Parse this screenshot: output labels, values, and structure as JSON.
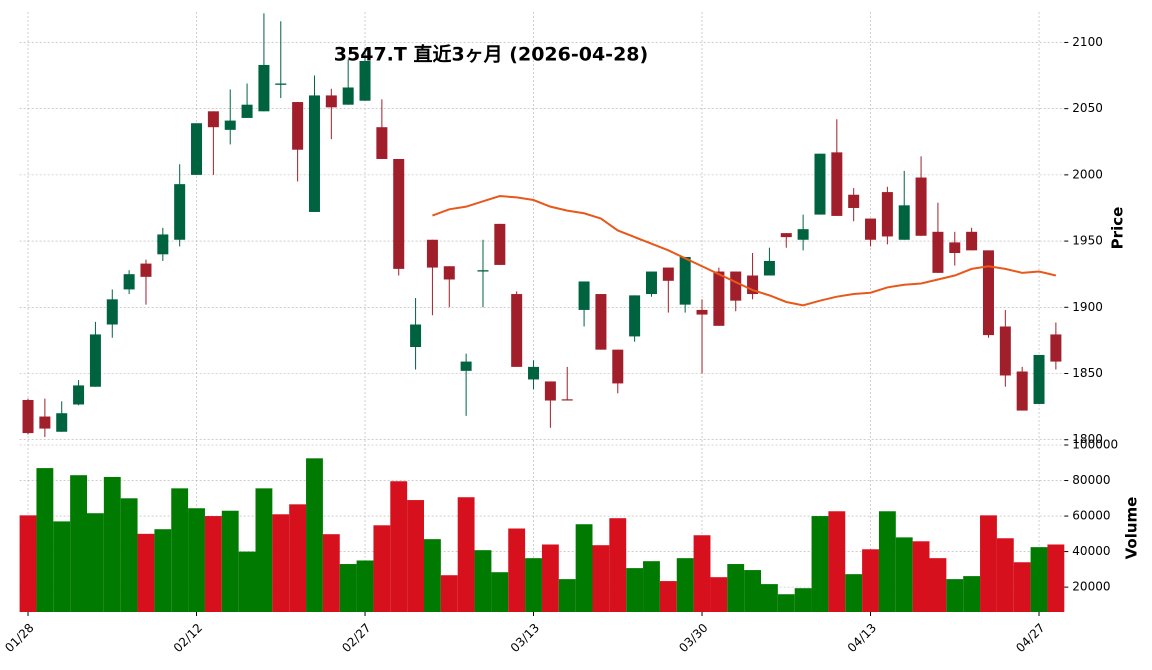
{
  "chart_data": [
    {
      "type": "candlestick",
      "title": "3547.T  直近3ヶ月  (2026-04-28)",
      "ylabel": "Price",
      "ylim": [
        1796,
        2123
      ],
      "yticks": [
        1800,
        1850,
        1900,
        1950,
        2000,
        2050,
        2100
      ],
      "grid": true,
      "up_color": "#006340",
      "down_color": "#a01f2a",
      "open": [
        1830,
        1817.5,
        1806,
        1826.6,
        1840,
        1887,
        1913.5,
        1933,
        1940,
        1951,
        2000,
        2048,
        2034,
        2043,
        2048,
        2068,
        2055,
        1972,
        2060,
        2053,
        2056,
        2036,
        2012,
        1870,
        1951,
        1931,
        1852,
        1927,
        1963,
        1910,
        1845.5,
        1844,
        1830.5,
        1898,
        1910,
        1868,
        1878,
        1910,
        1930,
        1902,
        1898,
        1927,
        1927,
        1924,
        1924,
        1956,
        1951,
        1970,
        2017,
        1985,
        1967,
        1987,
        1951,
        1998,
        1957,
        1949,
        1957,
        1943,
        1885.5,
        1851.5,
        1827,
        1879.5
      ],
      "high": [
        1831,
        1831,
        1829,
        1845,
        1889,
        1913.5,
        1928,
        1936,
        1960,
        2008,
        2039,
        2048,
        2064.5,
        2069,
        2122,
        2116,
        2055,
        2075,
        2065,
        2087,
        2096,
        2057,
        2012,
        1907,
        1951,
        1931,
        1865,
        1951,
        1963,
        1912,
        1860,
        1844,
        1855,
        1919.5,
        1910,
        1868,
        1909,
        1927,
        1930,
        1938,
        1906,
        1930,
        1927,
        1941,
        1945,
        1956,
        1970,
        2016,
        2042,
        1990,
        1967,
        1991,
        2003,
        2014,
        1979,
        1957,
        1960,
        1943,
        1898,
        1855,
        1864,
        1888.5
      ],
      "low": [
        1804,
        1802,
        1806,
        1826,
        1840,
        1877,
        1910,
        1902,
        1935,
        1946,
        2000,
        2000,
        2023,
        2043,
        2048,
        2058,
        1995,
        1972,
        2027,
        2053,
        2056,
        2012,
        1924,
        1853,
        1894,
        1900,
        1818,
        1900,
        1932,
        1855,
        1838,
        1809,
        1830,
        1885.5,
        1868,
        1835,
        1874,
        1908,
        1896,
        1896,
        1850,
        1886,
        1897,
        1906,
        1924,
        1945,
        1943,
        1970,
        1969,
        1965,
        1946,
        1947.5,
        1951,
        1954,
        1926,
        1931.5,
        1943,
        1877,
        1840,
        1822,
        1827,
        1853
      ],
      "close": [
        1805,
        1808.4,
        1820,
        1841,
        1879.5,
        1906,
        1925,
        1923,
        1955,
        1993,
        2039,
        2036,
        2041,
        2053,
        2083,
        2069,
        2019,
        2060,
        2051,
        2066,
        2086,
        2012,
        1929,
        1887,
        1930,
        1921,
        1859,
        1928,
        1932,
        1855,
        1855,
        1829.6,
        1830,
        1919.5,
        1868,
        1842.5,
        1909,
        1927,
        1920,
        1938,
        1894.5,
        1886,
        1905,
        1910,
        1935,
        1953,
        1959,
        2016,
        1969,
        1975,
        1951,
        1953.5,
        1977,
        1954,
        1926,
        1941,
        1943,
        1879,
        1848.5,
        1822,
        1864,
        1859
      ],
      "ma": {
        "color": "#e8581a",
        "values": [
          null,
          null,
          null,
          null,
          null,
          null,
          null,
          null,
          null,
          null,
          null,
          null,
          null,
          null,
          null,
          null,
          null,
          null,
          null,
          null,
          null,
          null,
          null,
          null,
          1969.3,
          1974,
          1976,
          1980,
          1984,
          1983,
          1981,
          1976,
          1973,
          1971,
          1967,
          1958,
          1953,
          1948,
          1943,
          1937,
          1931,
          1925,
          1919,
          1913,
          1909,
          1904,
          1901.5,
          1905,
          1908,
          1910,
          1911,
          1915,
          1917,
          1918,
          1921,
          1924,
          1929,
          1931,
          1929,
          1926,
          1927,
          1924
        ]
      }
    },
    {
      "type": "bar",
      "ylabel": "Volume",
      "ylim": [
        6000,
        100000
      ],
      "yticks": [
        20000,
        40000,
        60000,
        80000,
        100000
      ],
      "grid": true,
      "up_color": "#007a00",
      "down_color": "#d6101c",
      "categories": [
        "01/28",
        null,
        null,
        null,
        null,
        null,
        null,
        null,
        null,
        null,
        "02/12",
        null,
        null,
        null,
        null,
        null,
        null,
        null,
        null,
        null,
        "02/27",
        null,
        null,
        null,
        null,
        null,
        null,
        null,
        null,
        null,
        "03/13",
        null,
        null,
        null,
        null,
        null,
        null,
        null,
        null,
        null,
        "03/30",
        null,
        null,
        null,
        null,
        null,
        null,
        null,
        null,
        null,
        "04/13",
        null,
        null,
        null,
        null,
        null,
        null,
        null,
        null,
        null,
        "04/27",
        null
      ],
      "values": [
        60400,
        87000,
        57000,
        83000,
        61600,
        82000,
        70000,
        50000,
        52600,
        75600,
        64400,
        60000,
        63000,
        40000,
        75600,
        61000,
        66600,
        92500,
        49800,
        33000,
        35000,
        54800,
        79600,
        69000,
        47000,
        26700,
        70600,
        40800,
        28400,
        53000,
        36300,
        44000,
        24500,
        55400,
        43600,
        58800,
        30700,
        34600,
        23400,
        36300,
        49200,
        25600,
        33000,
        29600,
        21700,
        16000,
        19400,
        60000,
        62700,
        27300,
        41300,
        62700,
        48000,
        45800,
        36300,
        24500,
        26200,
        60400,
        47500,
        34000,
        42500,
        44000
      ]
    }
  ]
}
